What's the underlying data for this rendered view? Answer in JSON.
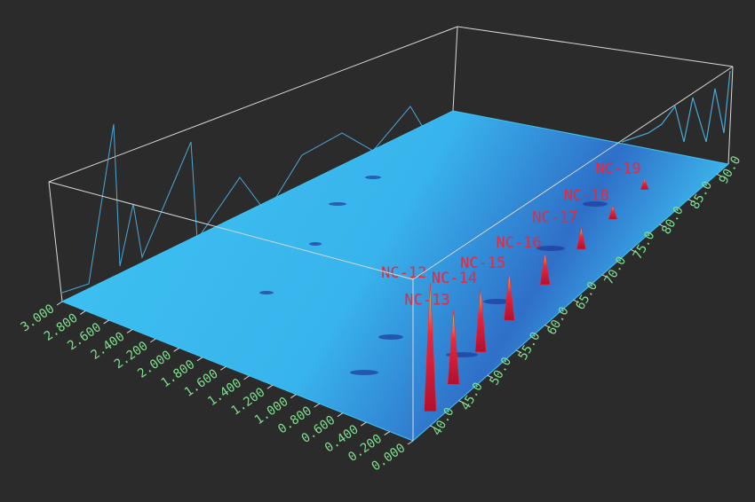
{
  "chart_data": {
    "type": "surface3d",
    "xlim": [
      0,
      3
    ],
    "xticks": [
      {
        "value": 0,
        "label": "0.000"
      },
      {
        "value": 0.2,
        "label": "0.200"
      },
      {
        "value": 0.4,
        "label": "0.400"
      },
      {
        "value": 0.6,
        "label": "0.600"
      },
      {
        "value": 0.8,
        "label": "0.800"
      },
      {
        "value": 1.0,
        "label": "1.000"
      },
      {
        "value": 1.2,
        "label": "1.200"
      },
      {
        "value": 1.4,
        "label": "1.400"
      },
      {
        "value": 1.6,
        "label": "1.600"
      },
      {
        "value": 1.8,
        "label": "1.800"
      },
      {
        "value": 2.0,
        "label": "2.000"
      },
      {
        "value": 2.2,
        "label": "2.200"
      },
      {
        "value": 2.4,
        "label": "2.400"
      },
      {
        "value": 2.6,
        "label": "2.600"
      },
      {
        "value": 2.8,
        "label": "2.800"
      },
      {
        "value": 3.0,
        "label": "3.000"
      }
    ],
    "ylim": [
      37,
      92
    ],
    "yticks": [
      {
        "value": 40,
        "label": "40.0"
      },
      {
        "value": 45,
        "label": "45.0"
      },
      {
        "value": 50,
        "label": "50.0"
      },
      {
        "value": 55,
        "label": "55.0"
      },
      {
        "value": 60,
        "label": "60.0"
      },
      {
        "value": 65,
        "label": "65.0"
      },
      {
        "value": 70,
        "label": "70.0"
      },
      {
        "value": 75,
        "label": "75.0"
      },
      {
        "value": 80,
        "label": "80.0"
      },
      {
        "value": 85,
        "label": "85.0"
      },
      {
        "value": 90,
        "label": "90.0"
      }
    ],
    "zlim": [
      0,
      100
    ],
    "peak_color": "#e8283c",
    "surface_color": "#3ec3f2",
    "peaks": [
      {
        "label": "NC-12",
        "x": 0.1,
        "y": 42,
        "z": 83
      },
      {
        "label": "NC-13",
        "x": 0.15,
        "y": 47,
        "z": 50
      },
      {
        "label": "NC-14",
        "x": 0.22,
        "y": 53,
        "z": 45
      },
      {
        "label": "NC-15",
        "x": 0.28,
        "y": 59,
        "z": 35
      },
      {
        "label": "NC-16",
        "x": 0.33,
        "y": 66,
        "z": 25
      },
      {
        "label": "NC-17",
        "x": 0.38,
        "y": 73,
        "z": 18
      },
      {
        "label": "NC-18",
        "x": 0.42,
        "y": 79,
        "z": 12
      },
      {
        "label": "NC-19",
        "x": 0.46,
        "y": 85,
        "z": 10
      }
    ]
  }
}
